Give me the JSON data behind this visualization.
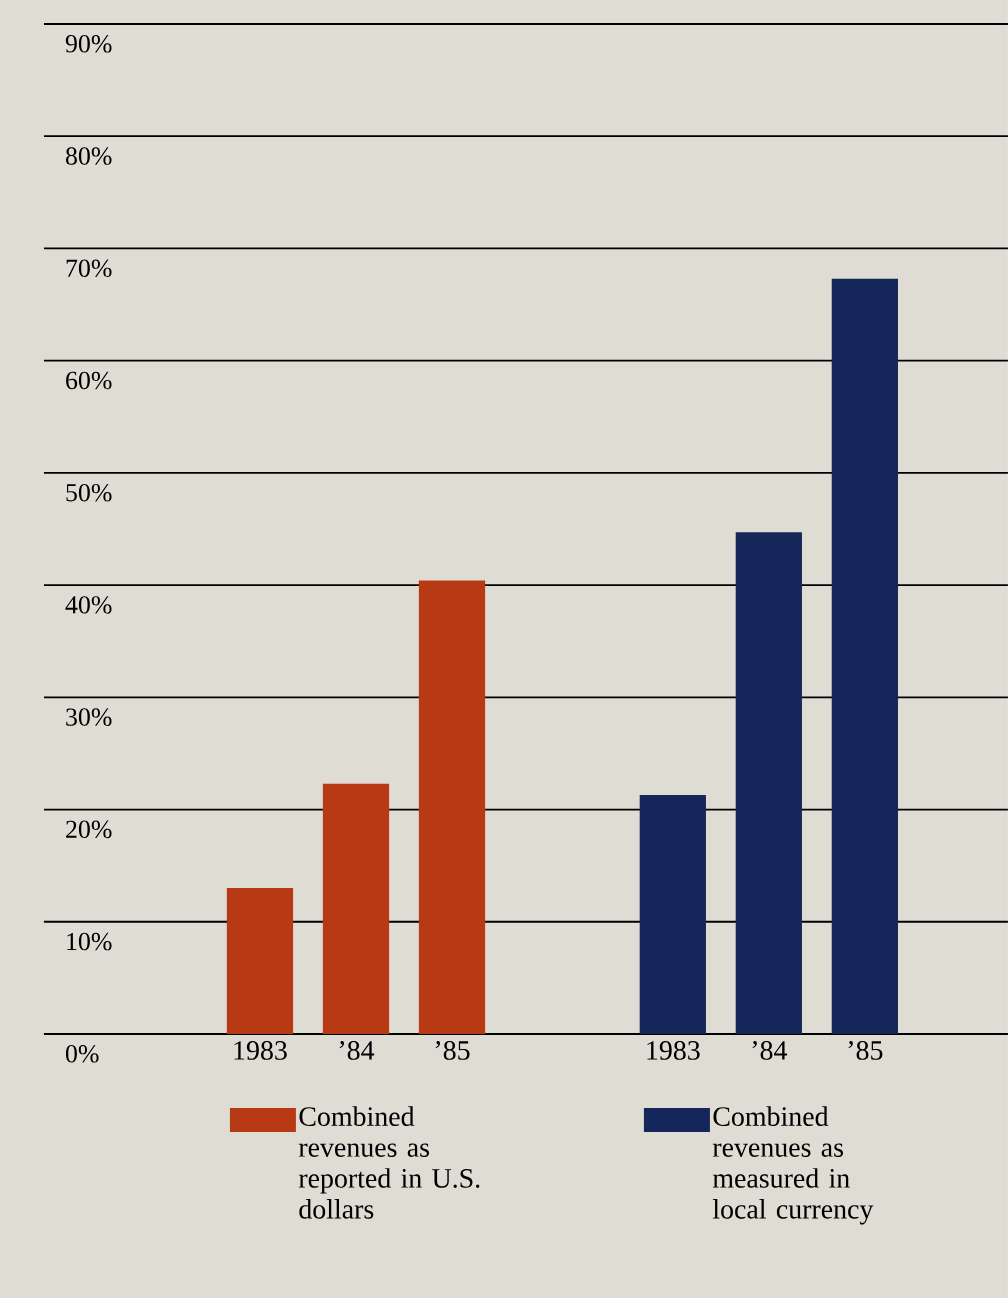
{
  "chart_data": {
    "type": "bar",
    "categories": [
      "1983",
      "’84",
      "’85",
      "1983",
      "’84",
      "’85"
    ],
    "series": [
      {
        "name": "Combined revenues as reported in U.S. dollars",
        "color": "#b83a14",
        "values": [
          13,
          22.3,
          40.4,
          null,
          null,
          null
        ]
      },
      {
        "name": "Combined revenues as measured in local currency",
        "color": "#14265a",
        "values": [
          null,
          null,
          null,
          21.3,
          44.7,
          67.3
        ]
      }
    ],
    "ylim": [
      0,
      90
    ],
    "yticks": [
      {
        "value": 0,
        "label": "0%"
      },
      {
        "value": 10,
        "label": "10%"
      },
      {
        "value": 20,
        "label": "20%"
      },
      {
        "value": 30,
        "label": "30%"
      },
      {
        "value": 40,
        "label": "40%"
      },
      {
        "value": 50,
        "label": "50%"
      },
      {
        "value": 60,
        "label": "60%"
      },
      {
        "value": 70,
        "label": "70%"
      },
      {
        "value": 80,
        "label": "80%"
      },
      {
        "value": 90,
        "label": "90%"
      }
    ],
    "grid": "y",
    "legend": "bottom"
  }
}
